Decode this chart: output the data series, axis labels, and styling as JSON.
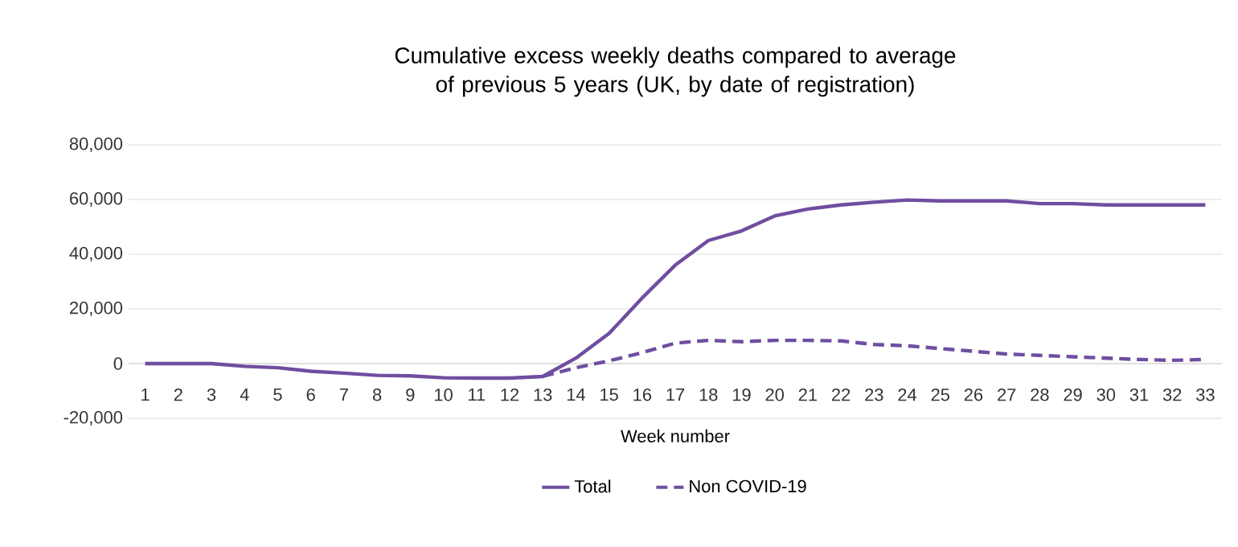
{
  "chart_data": {
    "type": "line",
    "title": "Cumulative excess weekly deaths compared to average of previous 5 years (UK, by date of registration)",
    "xlabel": "Week number",
    "categories": [
      "1",
      "2",
      "3",
      "4",
      "5",
      "6",
      "7",
      "8",
      "9",
      "10",
      "11",
      "12",
      "13",
      "14",
      "15",
      "16",
      "17",
      "18",
      "19",
      "20",
      "21",
      "22",
      "23",
      "24",
      "25",
      "26",
      "27",
      "28",
      "29",
      "30",
      "31",
      "32",
      "33"
    ],
    "series": [
      {
        "name": "Total",
        "color": "#6f4ea0",
        "line_style": "solid",
        "values": [
          0,
          0,
          0,
          -1000,
          -1500,
          -2800,
          -3500,
          -4300,
          -4500,
          -5200,
          -5300,
          -5300,
          -4700,
          2000,
          11000,
          24000,
          36000,
          45000,
          48500,
          54000,
          56500,
          58000,
          59000,
          59800,
          59500,
          59500,
          59500,
          58500,
          58500,
          58000,
          58000,
          58000,
          58000
        ]
      },
      {
        "name": "Non COVID-19",
        "color": "#6f4ea0",
        "line_style": "dashed",
        "values": [
          null,
          null,
          null,
          null,
          null,
          null,
          null,
          null,
          null,
          null,
          null,
          null,
          -4700,
          -1500,
          1000,
          4000,
          7500,
          8500,
          8000,
          8500,
          8500,
          8300,
          7000,
          6500,
          5500,
          4500,
          3500,
          3000,
          2500,
          2000,
          1500,
          1200,
          1500
        ]
      }
    ],
    "ylim": [
      -20000,
      80000
    ],
    "yticks": [
      {
        "value": -20000,
        "label": "-20,000"
      },
      {
        "value": 0,
        "label": "0"
      },
      {
        "value": 20000,
        "label": "20,000"
      },
      {
        "value": 40000,
        "label": "40,000"
      },
      {
        "value": 60000,
        "label": "60,000"
      },
      {
        "value": 80000,
        "label": "80,000"
      }
    ],
    "grid": "y",
    "legend": "bottom",
    "marker": "none"
  }
}
